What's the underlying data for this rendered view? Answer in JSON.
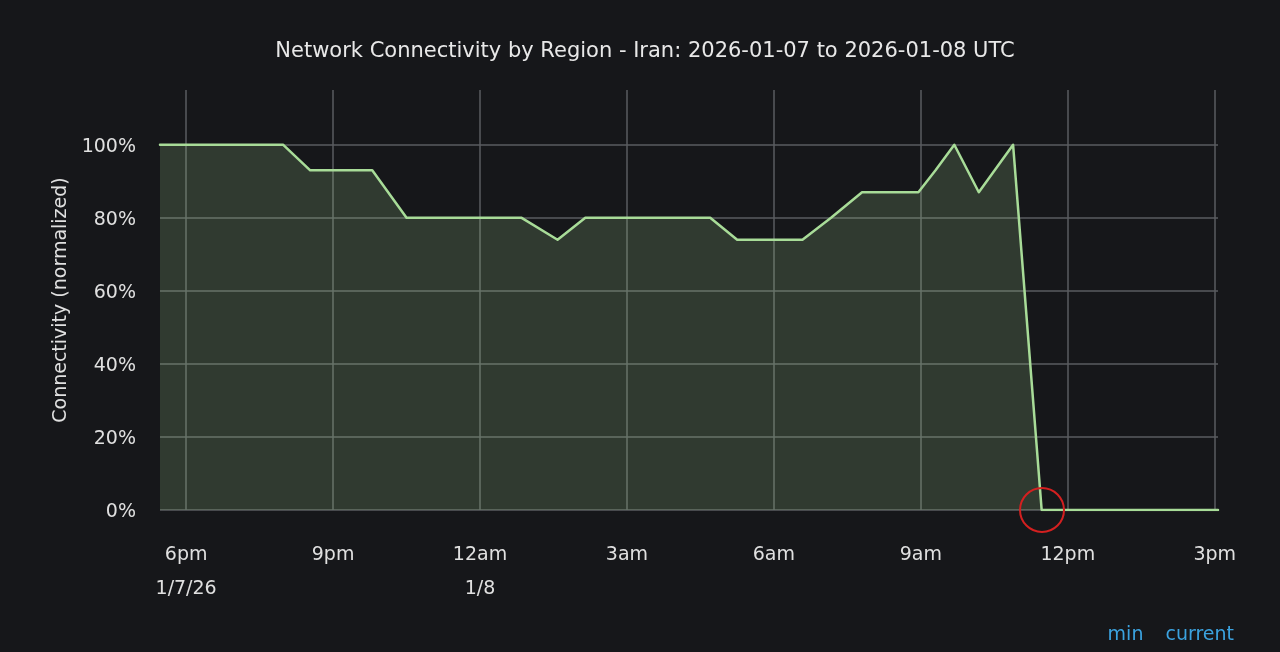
{
  "chart_data": {
    "type": "area",
    "title": "Network Connectivity by Region - Iran: 2026-01-07 to 2026-01-08 UTC",
    "ylabel": "Connectivity (normalized)",
    "x": [
      "2026-01-07T17:28",
      "2026-01-07T19:59",
      "2026-01-07T20:32",
      "2026-01-07T21:48",
      "2026-01-07T22:30",
      "2026-01-08T00:51",
      "2026-01-08T01:35",
      "2026-01-08T02:09",
      "2026-01-08T04:42",
      "2026-01-08T05:15",
      "2026-01-08T06:35",
      "2026-01-08T07:10",
      "2026-01-08T07:48",
      "2026-01-08T08:57",
      "2026-01-08T09:18",
      "2026-01-08T09:41",
      "2026-01-08T10:11",
      "2026-01-08T10:53",
      "2026-01-08T11:28",
      "2026-01-08T15:04"
    ],
    "series": [
      {
        "color": "#a8dc98",
        "values": [
          100,
          100,
          93,
          93,
          80,
          80,
          74,
          80,
          80,
          74,
          74,
          80,
          87,
          87,
          93,
          100,
          87,
          100,
          0,
          0
        ]
      }
    ],
    "xlim": [
      "2026-01-07T17:28",
      "2026-01-08T15:04"
    ],
    "xticks": [
      {
        "value": "2026-01-07T18:00",
        "label": "6pm\n1/7/26"
      },
      {
        "value": "2026-01-07T21:00",
        "label": "9pm"
      },
      {
        "value": "2026-01-08T00:00",
        "label": "12am\n1/8"
      },
      {
        "value": "2026-01-08T03:00",
        "label": "3am"
      },
      {
        "value": "2026-01-08T06:00",
        "label": "6am"
      },
      {
        "value": "2026-01-08T09:00",
        "label": "9am"
      },
      {
        "value": "2026-01-08T12:00",
        "label": "12pm"
      },
      {
        "value": "2026-01-08T15:00",
        "label": "3pm"
      }
    ],
    "ylim": [
      0,
      115
    ],
    "yticks": [
      {
        "value": 0,
        "label": "0%"
      },
      {
        "value": 20,
        "label": "20%"
      },
      {
        "value": 40,
        "label": "40%"
      },
      {
        "value": 60,
        "label": "60%"
      },
      {
        "value": 80,
        "label": "80%"
      },
      {
        "value": 100,
        "label": "100%"
      }
    ],
    "annotations": [
      "min",
      "current"
    ],
    "grid": true,
    "marker": "none",
    "line_style": "solid"
  }
}
